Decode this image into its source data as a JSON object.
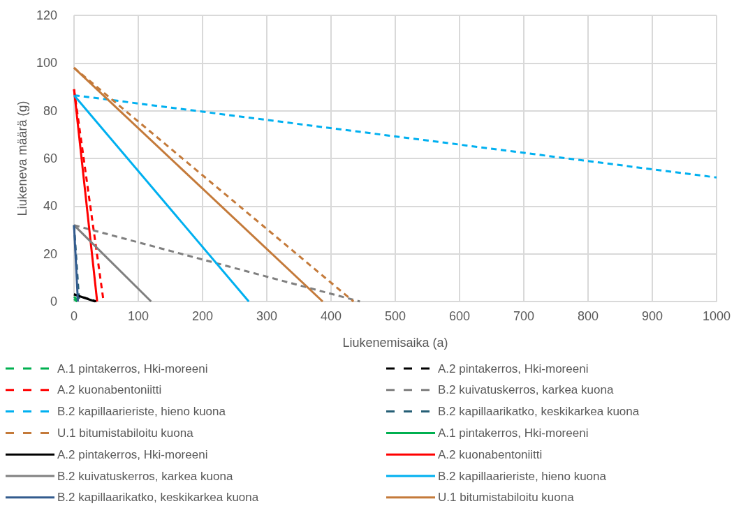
{
  "chart_data": {
    "type": "line",
    "xlabel": "Liukenemisaika (a)",
    "ylabel": "Liukeneva määrä (g)",
    "xlim": [
      0,
      1000
    ],
    "ylim": [
      0,
      120
    ],
    "xticks": [
      0,
      100,
      200,
      300,
      400,
      500,
      600,
      700,
      800,
      900,
      1000
    ],
    "yticks": [
      0,
      20,
      40,
      60,
      80,
      100,
      120
    ],
    "grid": true,
    "legend": "bottom",
    "marker": "none",
    "series": [
      {
        "name": "A.1 pintakerros, Hki-moreeni",
        "color": "#00b050",
        "line_style": "dashed",
        "x": [
          0,
          8
        ],
        "values": [
          2,
          0
        ]
      },
      {
        "name": "A.2 pintakerros, Hki-moreeni",
        "color": "#000000",
        "line_style": "dashed",
        "x": [
          0,
          35
        ],
        "values": [
          3,
          0
        ]
      },
      {
        "name": "A.2 kuonabentoniitti",
        "color": "#ff0000",
        "line_style": "dashed",
        "x": [
          0,
          46
        ],
        "values": [
          89,
          0
        ]
      },
      {
        "name": "B.2 kuivatuskerros, karkea kuona",
        "color": "#808080",
        "line_style": "dashed",
        "x": [
          0,
          445
        ],
        "values": [
          32,
          0
        ]
      },
      {
        "name": "B.2 kapillaarieriste, hieno kuona",
        "color": "#00b0f0",
        "line_style": "dashed",
        "x": [
          0,
          1000
        ],
        "values": [
          86.5,
          52
        ]
      },
      {
        "name": "B.2 kapillaarikatko, keskikarkea kuona",
        "color": "#255e75",
        "line_style": "dashed",
        "x": [
          0,
          8
        ],
        "values": [
          32,
          0
        ]
      },
      {
        "name": "U.1 bitumistabiloitu kuona",
        "color": "#c47a3a",
        "line_style": "dashed",
        "x": [
          0,
          435
        ],
        "values": [
          98,
          0
        ]
      },
      {
        "name": "A.1 pintakerros, Hki-moreeni",
        "color": "#00b050",
        "line_style": "solid",
        "x": [
          0,
          5
        ],
        "values": [
          1,
          0
        ]
      },
      {
        "name": "A.2 pintakerros, Hki-moreeni",
        "color": "#000000",
        "line_style": "solid",
        "x": [
          0,
          33
        ],
        "values": [
          3,
          0
        ]
      },
      {
        "name": "A.2 kuonabentoniitti",
        "color": "#ff0000",
        "line_style": "solid",
        "x": [
          0,
          36
        ],
        "values": [
          89,
          0
        ]
      },
      {
        "name": "B.2 kuivatuskerros, karkea kuona",
        "color": "#808080",
        "line_style": "solid",
        "x": [
          0,
          120
        ],
        "values": [
          32,
          0
        ]
      },
      {
        "name": "B.2 kapillaarieriste, hieno kuona",
        "color": "#00b0f0",
        "line_style": "solid",
        "x": [
          0,
          272
        ],
        "values": [
          86.5,
          0
        ]
      },
      {
        "name": "B.2 kapillaarikatko, keskikarkea kuona",
        "color": "#335b8e",
        "line_style": "solid",
        "x": [
          0,
          6
        ],
        "values": [
          32,
          0
        ]
      },
      {
        "name": "U.1 bitumistabiloitu kuona",
        "color": "#c47a3a",
        "line_style": "solid",
        "x": [
          0,
          387
        ],
        "values": [
          98,
          0
        ]
      }
    ]
  }
}
